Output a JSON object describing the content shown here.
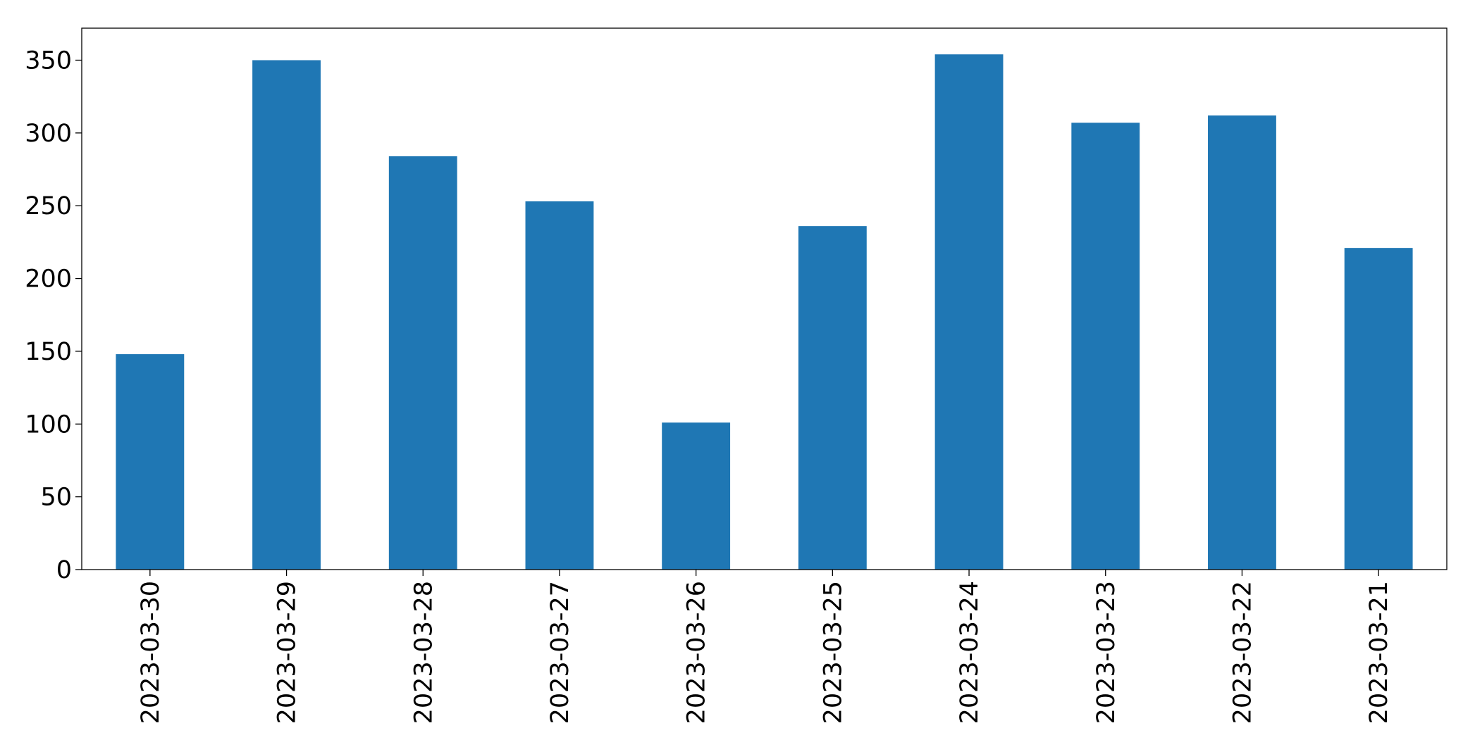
{
  "chart_data": {
    "type": "bar",
    "categories": [
      "2023-03-30",
      "2023-03-29",
      "2023-03-28",
      "2023-03-27",
      "2023-03-26",
      "2023-03-25",
      "2023-03-24",
      "2023-03-23",
      "2023-03-22",
      "2023-03-21"
    ],
    "values": [
      148,
      350,
      284,
      253,
      101,
      236,
      354,
      307,
      312,
      221
    ],
    "color": "#1f77b4",
    "ylim": [
      0,
      372
    ],
    "yticks": [
      0,
      50,
      100,
      150,
      200,
      250,
      300,
      350
    ],
    "grid": false
  }
}
